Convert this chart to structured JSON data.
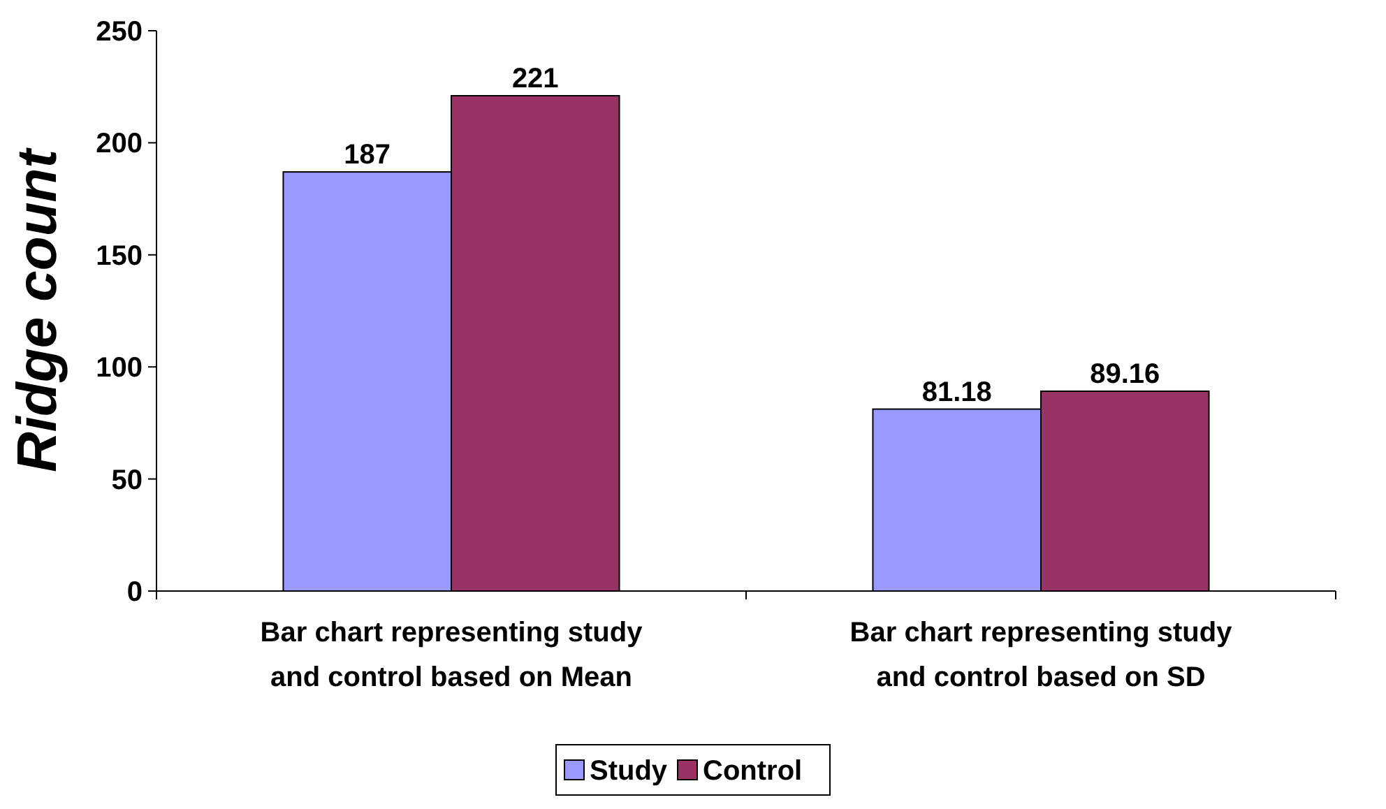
{
  "chart_data": {
    "type": "bar",
    "ylabel": "Ridge count",
    "categories": [
      "Bar chart representing study and control based on Mean",
      "Bar chart representing study and control based on SD"
    ],
    "series": [
      {
        "name": "Study",
        "color": "#9999ff",
        "values": [
          187,
          81.18
        ]
      },
      {
        "name": "Control",
        "color": "#993366",
        "values": [
          221,
          89.16
        ]
      }
    ],
    "ylim": [
      0,
      250
    ],
    "yticks": [
      0,
      50,
      100,
      150,
      200,
      250
    ],
    "grid": false,
    "legend": "bottom",
    "data_labels": true
  }
}
